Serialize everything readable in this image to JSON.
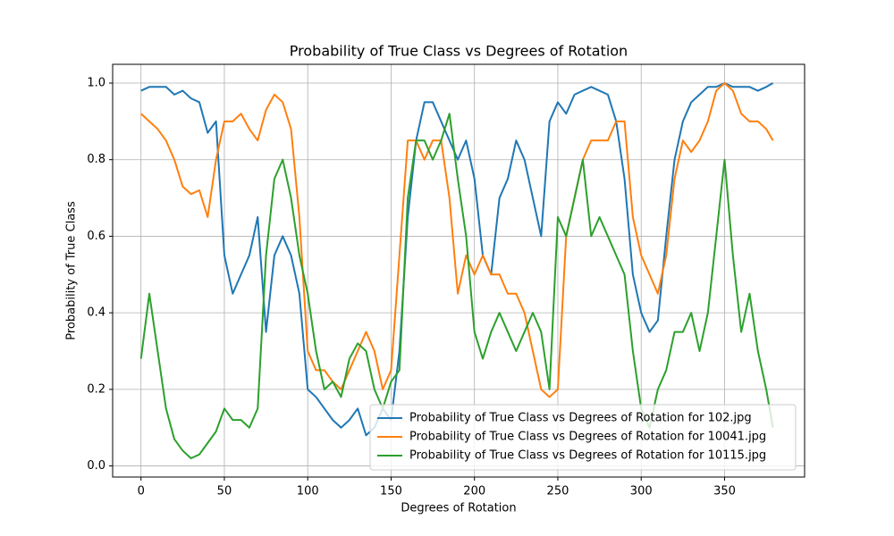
{
  "chart_data": {
    "type": "line",
    "title": "Probability of True Class vs Degrees of Rotation",
    "xlabel": "Degrees of Rotation",
    "ylabel": "Probability of True Class",
    "x": [
      0,
      5,
      10,
      15,
      20,
      25,
      30,
      35,
      40,
      45,
      50,
      55,
      60,
      65,
      70,
      75,
      80,
      85,
      90,
      95,
      100,
      105,
      110,
      115,
      120,
      125,
      130,
      135,
      140,
      145,
      150,
      155,
      160,
      165,
      170,
      175,
      180,
      185,
      190,
      195,
      200,
      205,
      210,
      215,
      220,
      225,
      230,
      235,
      240,
      245,
      250,
      255,
      260,
      265,
      270,
      275,
      280,
      285,
      290,
      295,
      300,
      305,
      310,
      315,
      320,
      325,
      330,
      335,
      340,
      345,
      350,
      355,
      360,
      365,
      370,
      375,
      379
    ],
    "series": [
      {
        "name": "Probability of True Class vs Degrees of Rotation for 102.jpg",
        "color": "#1f77b4",
        "values": [
          0.98,
          0.99,
          0.99,
          0.99,
          0.97,
          0.98,
          0.96,
          0.95,
          0.87,
          0.9,
          0.55,
          0.45,
          0.5,
          0.55,
          0.65,
          0.35,
          0.55,
          0.6,
          0.55,
          0.45,
          0.2,
          0.18,
          0.15,
          0.12,
          0.1,
          0.12,
          0.15,
          0.08,
          0.1,
          0.15,
          0.12,
          0.3,
          0.65,
          0.85,
          0.95,
          0.95,
          0.9,
          0.85,
          0.8,
          0.85,
          0.75,
          0.55,
          0.5,
          0.7,
          0.75,
          0.85,
          0.8,
          0.7,
          0.6,
          0.9,
          0.95,
          0.92,
          0.97,
          0.98,
          0.99,
          0.98,
          0.97,
          0.9,
          0.75,
          0.5,
          0.4,
          0.35,
          0.38,
          0.6,
          0.8,
          0.9,
          0.95,
          0.97,
          0.99,
          0.99,
          1.0,
          0.99,
          0.99,
          0.99,
          0.98,
          0.99,
          1.0
        ]
      },
      {
        "name": "Probability of True Class vs Degrees of Rotation for 10041.jpg",
        "color": "#ff7f0e",
        "values": [
          0.92,
          0.9,
          0.88,
          0.85,
          0.8,
          0.73,
          0.71,
          0.72,
          0.65,
          0.8,
          0.9,
          0.9,
          0.92,
          0.88,
          0.85,
          0.93,
          0.97,
          0.95,
          0.88,
          0.65,
          0.3,
          0.25,
          0.25,
          0.22,
          0.2,
          0.25,
          0.3,
          0.35,
          0.3,
          0.2,
          0.25,
          0.55,
          0.85,
          0.85,
          0.8,
          0.85,
          0.85,
          0.7,
          0.45,
          0.55,
          0.5,
          0.55,
          0.5,
          0.5,
          0.45,
          0.45,
          0.4,
          0.3,
          0.2,
          0.18,
          0.2,
          0.6,
          0.7,
          0.8,
          0.85,
          0.85,
          0.85,
          0.9,
          0.9,
          0.65,
          0.55,
          0.5,
          0.45,
          0.55,
          0.75,
          0.85,
          0.82,
          0.85,
          0.9,
          0.98,
          1.0,
          0.98,
          0.92,
          0.9,
          0.9,
          0.88,
          0.85
        ]
      },
      {
        "name": "Probability of True Class vs Degrees of Rotation for 10115.jpg",
        "color": "#2ca02c",
        "values": [
          0.28,
          0.45,
          0.3,
          0.15,
          0.07,
          0.04,
          0.02,
          0.03,
          0.06,
          0.09,
          0.15,
          0.12,
          0.12,
          0.1,
          0.15,
          0.55,
          0.75,
          0.8,
          0.7,
          0.55,
          0.45,
          0.3,
          0.2,
          0.22,
          0.18,
          0.28,
          0.32,
          0.3,
          0.2,
          0.15,
          0.22,
          0.25,
          0.7,
          0.85,
          0.85,
          0.8,
          0.85,
          0.92,
          0.75,
          0.6,
          0.35,
          0.28,
          0.35,
          0.4,
          0.35,
          0.3,
          0.35,
          0.4,
          0.35,
          0.2,
          0.65,
          0.6,
          0.7,
          0.8,
          0.6,
          0.65,
          0.6,
          0.55,
          0.5,
          0.3,
          0.15,
          0.1,
          0.2,
          0.25,
          0.35,
          0.35,
          0.4,
          0.3,
          0.4,
          0.6,
          0.8,
          0.55,
          0.35,
          0.45,
          0.3,
          0.2,
          0.1
        ]
      }
    ],
    "xlim": [
      -17,
      398
    ],
    "ylim": [
      -0.029,
      1.049
    ],
    "xticks": [
      0,
      50,
      100,
      150,
      200,
      250,
      300,
      350
    ],
    "yticks": [
      {
        "value": 0,
        "label": "0.0"
      },
      {
        "value": 0.2,
        "label": "0.2"
      },
      {
        "value": 0.4,
        "label": "0.4"
      },
      {
        "value": 0.6,
        "label": "0.6"
      },
      {
        "value": 0.8,
        "label": "0.8"
      },
      {
        "value": 1,
        "label": "1.0"
      }
    ],
    "grid": true,
    "legend": "lower right"
  }
}
